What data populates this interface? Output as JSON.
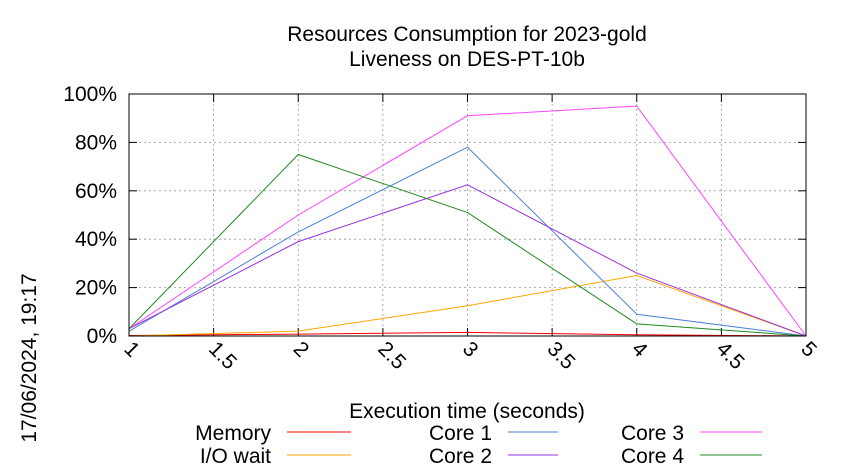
{
  "chart_data": {
    "type": "line",
    "title_line1": "Resources Consumption for 2023-gold",
    "title_line2": "Liveness on DES-PT-10b",
    "xlabel": "Execution time (seconds)",
    "ylabel": "",
    "timestamp": "17/06/2024, 19:17",
    "xlim": [
      1,
      5
    ],
    "ylim": [
      0,
      100
    ],
    "grid": true,
    "x_tick_labels": [
      "1",
      "1.5",
      "2",
      "2.5",
      "3",
      "3.5",
      "4",
      "4.5",
      "5"
    ],
    "y_tick_labels": [
      "0%",
      "20%",
      "40%",
      "60%",
      "80%",
      "100%"
    ],
    "legend_placement": "bottom",
    "x": [
      1,
      2,
      3,
      4,
      5
    ],
    "series": [
      {
        "name": "Memory",
        "color": "#ff0000",
        "values": [
          0.2,
          0.8,
          1.5,
          0.5,
          0
        ]
      },
      {
        "name": "I/O wait",
        "color": "#ffa500",
        "values": [
          0,
          2,
          12.5,
          25,
          0
        ]
      },
      {
        "name": "Core 1",
        "color": "#4a7fd6",
        "values": [
          2,
          43,
          78,
          9,
          0
        ]
      },
      {
        "name": "Core 2",
        "color": "#9a30e0",
        "values": [
          3,
          39,
          62.5,
          26,
          0
        ]
      },
      {
        "name": "Core 3",
        "color": "#ff44ff",
        "values": [
          3,
          50,
          91,
          95,
          0
        ]
      },
      {
        "name": "Core 4",
        "color": "#228b22",
        "values": [
          3,
          75,
          51,
          5,
          0
        ]
      }
    ]
  }
}
